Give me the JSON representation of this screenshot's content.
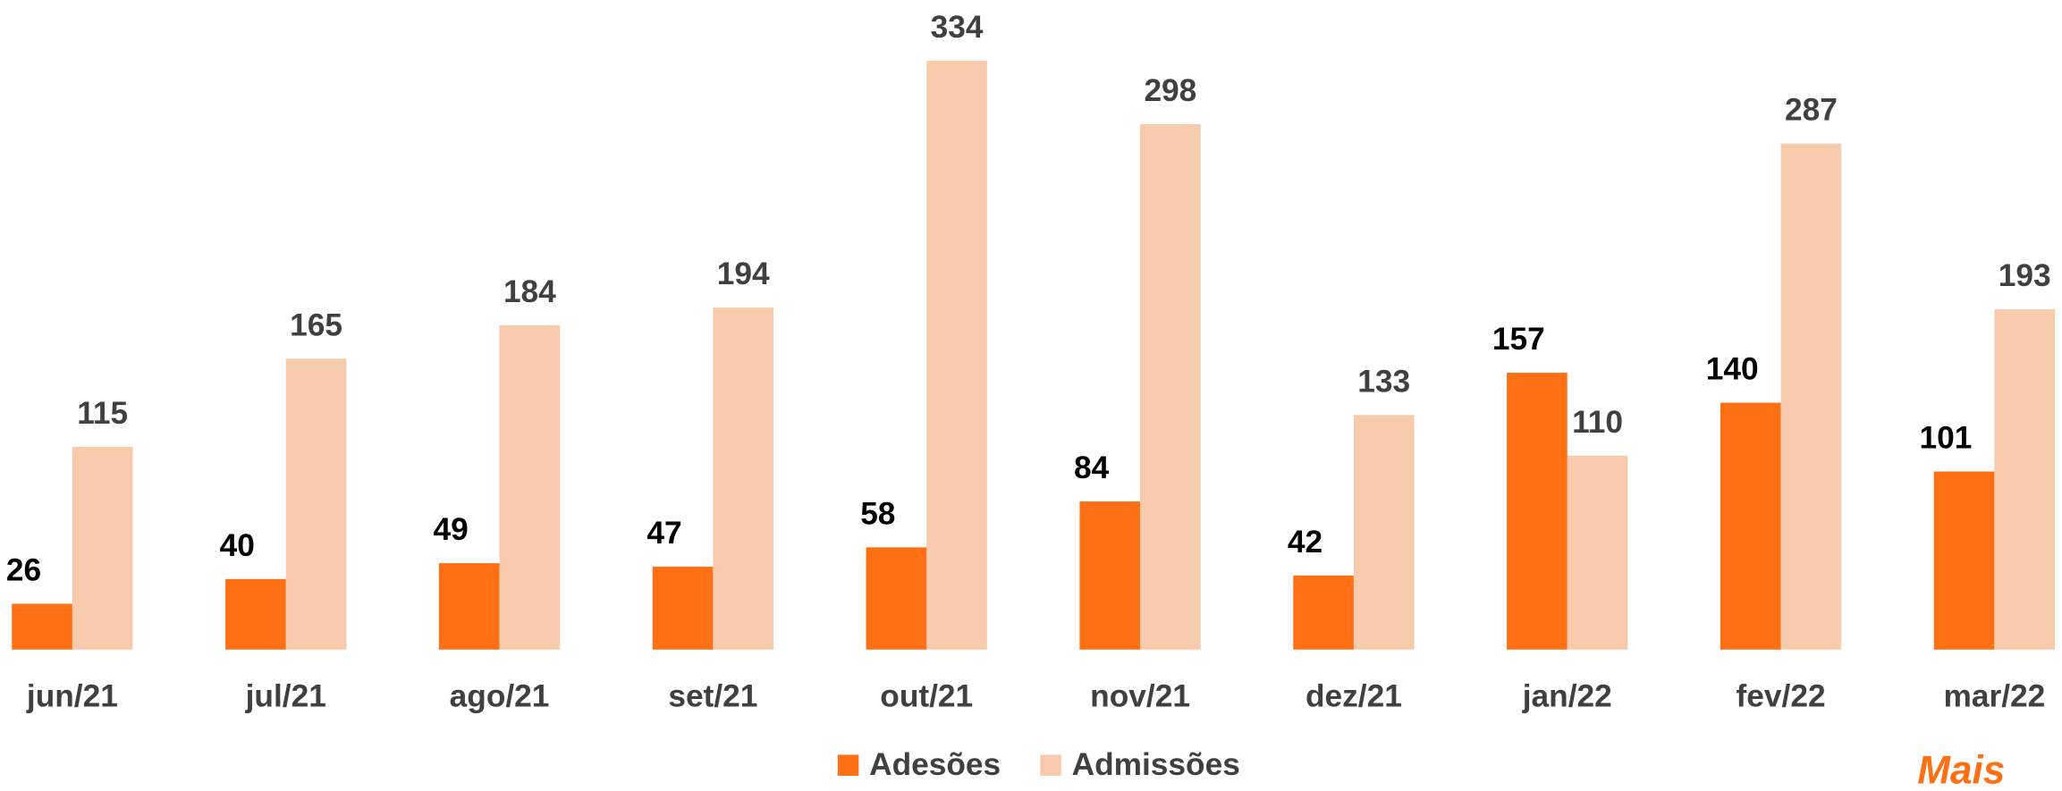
{
  "chart_data": {
    "type": "bar",
    "categories": [
      "jun/21",
      "jul/21",
      "ago/21",
      "set/21",
      "out/21",
      "nov/21",
      "dez/21",
      "jan/22",
      "fev/22",
      "mar/22"
    ],
    "series": [
      {
        "name": "Adesões",
        "color": "#ff6f14",
        "values": [
          26,
          40,
          49,
          47,
          58,
          84,
          42,
          157,
          140,
          101
        ]
      },
      {
        "name": "Admissões",
        "color": "#f8cbad",
        "values": [
          115,
          165,
          184,
          194,
          334,
          298,
          133,
          110,
          287,
          193
        ]
      }
    ],
    "ylim": [
      0,
      334
    ],
    "grid": false,
    "legend": "bottom",
    "logo": "Mais"
  }
}
